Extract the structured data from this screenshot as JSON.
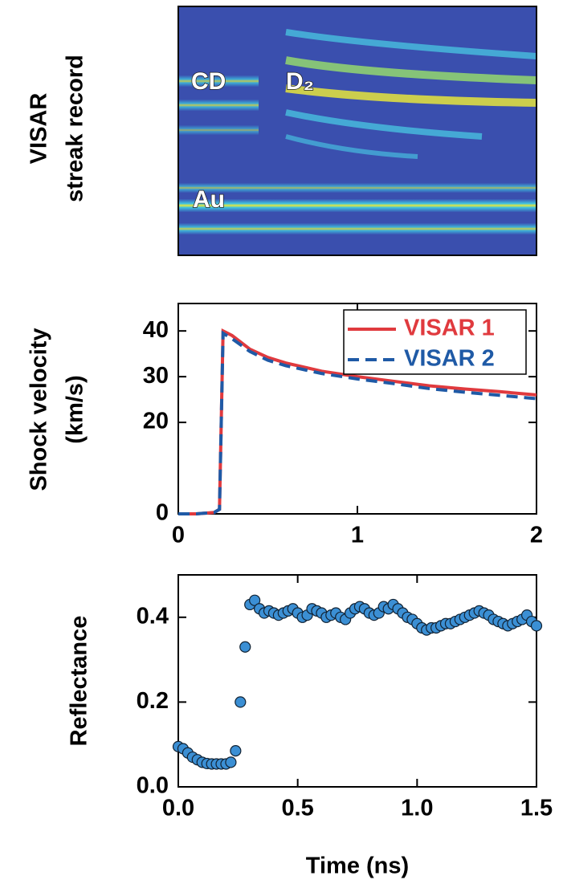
{
  "chart_data": [
    {
      "type": "image",
      "ylabel": [
        "VISAR",
        "streak record"
      ],
      "annotations": [
        "CD",
        "D₂",
        "Au"
      ]
    },
    {
      "type": "line",
      "ylabel": [
        "Shock velocity",
        "(km/s)"
      ],
      "x": [
        0,
        0.1,
        0.2,
        0.23,
        0.25,
        0.3,
        0.4,
        0.5,
        0.6,
        0.8,
        1.0,
        1.2,
        1.4,
        1.6,
        1.8,
        2.0
      ],
      "series": [
        {
          "name": "VISAR 1",
          "color": "#e03a3e",
          "style": "solid",
          "values": [
            0,
            0,
            0.3,
            1,
            40,
            39,
            36,
            34.2,
            33,
            31.2,
            30,
            29,
            28,
            27.3,
            26.7,
            26
          ]
        },
        {
          "name": "VISAR 2",
          "color": "#1f5aa6",
          "style": "dashed",
          "values": [
            0,
            0,
            0.3,
            1,
            39.5,
            38.3,
            35.5,
            33.6,
            32.4,
            30.7,
            29.5,
            28.5,
            27.4,
            26.6,
            25.9,
            25.2
          ]
        }
      ],
      "xlim": [
        0,
        2
      ],
      "xticks": [
        0,
        1,
        2
      ],
      "ylim": [
        0,
        46
      ],
      "yticks": [
        0,
        20,
        30,
        40
      ],
      "legend": "upper right"
    },
    {
      "type": "scatter",
      "ylabel": "Reflectance",
      "xlabel": "Time (ns)",
      "color": "#3b8fd4",
      "x": [
        0,
        0.02,
        0.04,
        0.06,
        0.08,
        0.1,
        0.12,
        0.14,
        0.16,
        0.18,
        0.2,
        0.22,
        0.24,
        0.26,
        0.28,
        0.3,
        0.32,
        0.34,
        0.36,
        0.38,
        0.4,
        0.42,
        0.44,
        0.46,
        0.48,
        0.5,
        0.52,
        0.54,
        0.56,
        0.58,
        0.6,
        0.62,
        0.64,
        0.66,
        0.68,
        0.7,
        0.72,
        0.74,
        0.76,
        0.78,
        0.8,
        0.82,
        0.84,
        0.86,
        0.88,
        0.9,
        0.92,
        0.94,
        0.96,
        0.98,
        1.0,
        1.02,
        1.04,
        1.06,
        1.08,
        1.1,
        1.12,
        1.14,
        1.16,
        1.18,
        1.2,
        1.22,
        1.24,
        1.26,
        1.28,
        1.3,
        1.32,
        1.34,
        1.36,
        1.38,
        1.4,
        1.42,
        1.44,
        1.46,
        1.48,
        1.5
      ],
      "values": [
        0.095,
        0.09,
        0.08,
        0.07,
        0.064,
        0.058,
        0.055,
        0.054,
        0.054,
        0.054,
        0.054,
        0.058,
        0.085,
        0.2,
        0.33,
        0.43,
        0.44,
        0.42,
        0.41,
        0.415,
        0.41,
        0.405,
        0.41,
        0.415,
        0.42,
        0.41,
        0.4,
        0.405,
        0.42,
        0.415,
        0.41,
        0.4,
        0.405,
        0.41,
        0.4,
        0.395,
        0.41,
        0.42,
        0.425,
        0.42,
        0.41,
        0.405,
        0.41,
        0.425,
        0.42,
        0.43,
        0.42,
        0.41,
        0.4,
        0.395,
        0.385,
        0.375,
        0.37,
        0.375,
        0.375,
        0.38,
        0.385,
        0.385,
        0.39,
        0.395,
        0.4,
        0.405,
        0.41,
        0.415,
        0.41,
        0.405,
        0.395,
        0.39,
        0.385,
        0.38,
        0.385,
        0.39,
        0.395,
        0.405,
        0.39,
        0.38
      ],
      "xlim": [
        0,
        1.5
      ],
      "xticks": [
        {
          "value": 0,
          "label": "0.0"
        },
        {
          "value": 0.5,
          "label": "0.5"
        },
        {
          "value": 1,
          "label": "1.0"
        },
        {
          "value": 1.5,
          "label": "1.5"
        }
      ],
      "ylim": [
        0,
        0.5
      ],
      "yticks": [
        {
          "value": 0,
          "label": "0.0"
        },
        0.2,
        0.4
      ]
    }
  ]
}
